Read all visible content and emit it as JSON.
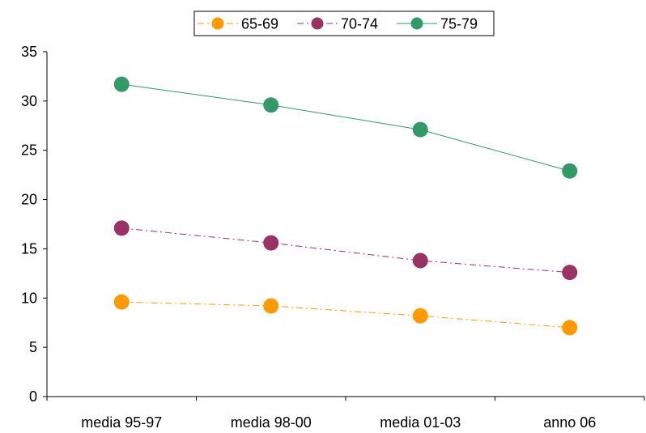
{
  "chart_data": {
    "type": "line",
    "title": "",
    "xlabel": "",
    "ylabel": "",
    "categories": [
      "media 95-97",
      "media 98-00",
      "media 01-03",
      "anno 06"
    ],
    "ylim": [
      0,
      35
    ],
    "yticks": [
      0,
      5,
      10,
      15,
      20,
      25,
      30,
      35
    ],
    "grid": false,
    "legend_position": "top-center",
    "series": [
      {
        "name": "65-69",
        "values": [
          9.6,
          9.2,
          8.2,
          7.0
        ],
        "color": "#FF9900",
        "line_style": "dash-dot",
        "marker": "circle"
      },
      {
        "name": "70-74",
        "values": [
          17.1,
          15.6,
          13.8,
          12.6
        ],
        "color": "#993366",
        "line_style": "dash-dot",
        "marker": "circle"
      },
      {
        "name": "75-79",
        "values": [
          31.7,
          29.6,
          27.1,
          22.9
        ],
        "color": "#339966",
        "line_style": "solid",
        "marker": "circle"
      }
    ]
  }
}
